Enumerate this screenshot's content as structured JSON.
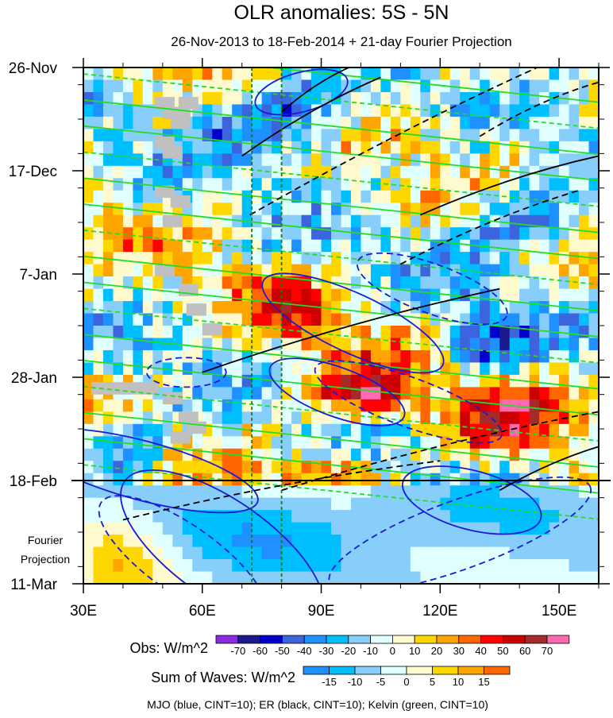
{
  "chart_data": {
    "type": "heatmap",
    "title": "OLR anomalies: 5S - 5N",
    "subtitle": "26-Nov-2013 to 18-Feb-2014 + 21-day Fourier Projection",
    "x_ticks": [
      {
        "value": 30,
        "label": "30E"
      },
      {
        "value": 60,
        "label": "60E"
      },
      {
        "value": 90,
        "label": "90E"
      },
      {
        "value": 120,
        "label": "120E"
      },
      {
        "value": 150,
        "label": "150E"
      }
    ],
    "xlim": [
      30,
      160
    ],
    "ylim_days": [
      0,
      105
    ],
    "y_ticks": [
      {
        "day": 0,
        "label": "26-Nov"
      },
      {
        "day": 21,
        "label": "17-Dec"
      },
      {
        "day": 42,
        "label": "7-Jan"
      },
      {
        "day": 63,
        "label": "28-Jan"
      },
      {
        "day": 84,
        "label": "18-Feb"
      },
      {
        "day": 105,
        "label": "11-Mar"
      }
    ],
    "projection_start_day": 84,
    "projection_label": [
      "Fourier",
      "Projection"
    ],
    "reference_longitudes": [
      72.5,
      80
    ],
    "obs_legend": {
      "label": "Obs: W/m^2",
      "levels": [
        "-70",
        "-60",
        "-50",
        "-40",
        "-30",
        "-20",
        "-10",
        "0",
        "10",
        "20",
        "30",
        "40",
        "50",
        "60",
        "70"
      ],
      "colors": [
        "#8a2be2",
        "#1a1a8c",
        "#0000cd",
        "#3c64dc",
        "#1e90ff",
        "#00bfff",
        "#87cefa",
        "#e0ffff",
        "#fffacd",
        "#ffd700",
        "#ffa500",
        "#ff6600",
        "#ff0000",
        "#cc0000",
        "#a52a2a",
        "#ff69b4"
      ]
    },
    "waves_legend": {
      "label": "Sum of Waves: W/m^2",
      "levels": [
        "-15",
        "-10",
        "-5",
        "0",
        "5",
        "10",
        "15"
      ],
      "colors": [
        "#1e90ff",
        "#00bfff",
        "#87cefa",
        "#e0ffff",
        "#fffacd",
        "#ffd700",
        "#ffa500",
        "#ff6600"
      ]
    },
    "contour_note": "MJO (blue, CINT=10); ER (black, CINT=10); Kelvin (green, CINT=10)",
    "series": [
      {
        "name": "MJO",
        "color": "#1a1ad6"
      },
      {
        "name": "ER",
        "color": "#000000"
      },
      {
        "name": "Kelvin",
        "color": "#22dd22"
      }
    ],
    "observed_days": 84,
    "grid_columns": 52,
    "grid_rows": 42
  }
}
